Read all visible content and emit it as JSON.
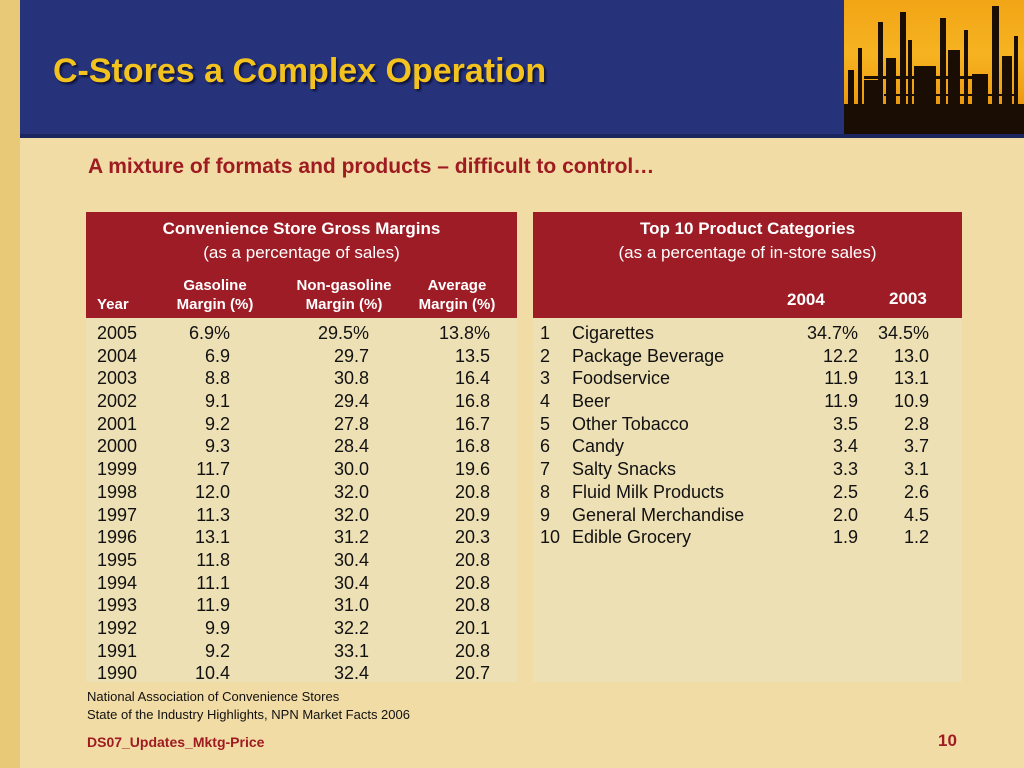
{
  "slide": {
    "title": "C-Stores a Complex Operation",
    "subtitle": "A mixture of formats and products – difficult to control…"
  },
  "margins_table": {
    "title": "Convenience Store Gross Margins",
    "subtitle": "(as a percentage of sales)",
    "columns": {
      "year": "Year",
      "gas_line1": "Gasoline",
      "gas_line2": "Margin (%)",
      "nongas_line1": "Non-gasoline",
      "nongas_line2": "Margin (%)",
      "avg_line1": "Average",
      "avg_line2": "Margin (%)"
    },
    "rows": [
      {
        "year": "2005",
        "gas": "6.9%",
        "nongas": "29.5%",
        "avg": "13.8%"
      },
      {
        "year": "2004",
        "gas": "6.9",
        "nongas": "29.7",
        "avg": "13.5"
      },
      {
        "year": "2003",
        "gas": "8.8",
        "nongas": "30.8",
        "avg": "16.4"
      },
      {
        "year": "2002",
        "gas": "9.1",
        "nongas": "29.4",
        "avg": "16.8"
      },
      {
        "year": "2001",
        "gas": "9.2",
        "nongas": "27.8",
        "avg": "16.7"
      },
      {
        "year": "2000",
        "gas": "9.3",
        "nongas": "28.4",
        "avg": "16.8"
      },
      {
        "year": "1999",
        "gas": "11.7",
        "nongas": "30.0",
        "avg": "19.6"
      },
      {
        "year": "1998",
        "gas": "12.0",
        "nongas": "32.0",
        "avg": "20.8"
      },
      {
        "year": "1997",
        "gas": "11.3",
        "nongas": "32.0",
        "avg": "20.9"
      },
      {
        "year": "1996",
        "gas": "13.1",
        "nongas": "31.2",
        "avg": "20.3"
      },
      {
        "year": "1995",
        "gas": "11.8",
        "nongas": "30.4",
        "avg": "20.8"
      },
      {
        "year": "1994",
        "gas": "11.1",
        "nongas": "30.4",
        "avg": "20.8"
      },
      {
        "year": "1993",
        "gas": "11.9",
        "nongas": "31.0",
        "avg": "20.8"
      },
      {
        "year": "1992",
        "gas": "9.9",
        "nongas": "32.2",
        "avg": "20.1"
      },
      {
        "year": "1991",
        "gas": "9.2",
        "nongas": "33.1",
        "avg": "20.8"
      },
      {
        "year": "1990",
        "gas": "10.4",
        "nongas": "32.4",
        "avg": "20.7"
      }
    ]
  },
  "categories_table": {
    "title": "Top 10 Product Categories",
    "subtitle": "(as a percentage of in-store sales)",
    "columns": {
      "y2004": "2004",
      "y2003": "2003"
    },
    "rows": [
      {
        "rank": "1",
        "name": "Cigarettes",
        "v2004": "34.7%",
        "v2003": "34.5%"
      },
      {
        "rank": "2",
        "name": "Package Beverage",
        "v2004": "12.2",
        "v2003": "13.0"
      },
      {
        "rank": "3",
        "name": "Foodservice",
        "v2004": "11.9",
        "v2003": "13.1"
      },
      {
        "rank": "4",
        "name": "Beer",
        "v2004": "11.9",
        "v2003": "10.9"
      },
      {
        "rank": "5",
        "name": "Other Tobacco",
        "v2004": "3.5",
        "v2003": "2.8"
      },
      {
        "rank": "6",
        "name": "Candy",
        "v2004": "3.4",
        "v2003": "3.7"
      },
      {
        "rank": "7",
        "name": "Salty Snacks",
        "v2004": "3.3",
        "v2003": "3.1"
      },
      {
        "rank": "8",
        "name": "Fluid Milk Products",
        "v2004": "2.5",
        "v2003": "2.6"
      },
      {
        "rank": "9",
        "name": "General Merchandise",
        "v2004": "2.0",
        "v2003": "4.5"
      },
      {
        "rank": "10",
        "name": "Edible Grocery",
        "v2004": "1.9",
        "v2003": "1.2"
      }
    ]
  },
  "source": {
    "line1": "National Association of Convenience Stores",
    "line2": "State of the Industry Highlights, NPN Market Facts 2006"
  },
  "footer": {
    "code": "DS07_Updates_Mktg-Price",
    "page_number": "10"
  },
  "colors": {
    "header_blue": "#26337a",
    "title_gold": "#f3c21e",
    "accent_red": "#9e1c26",
    "background": "#f2dca6",
    "panel": "#eee0b5"
  }
}
